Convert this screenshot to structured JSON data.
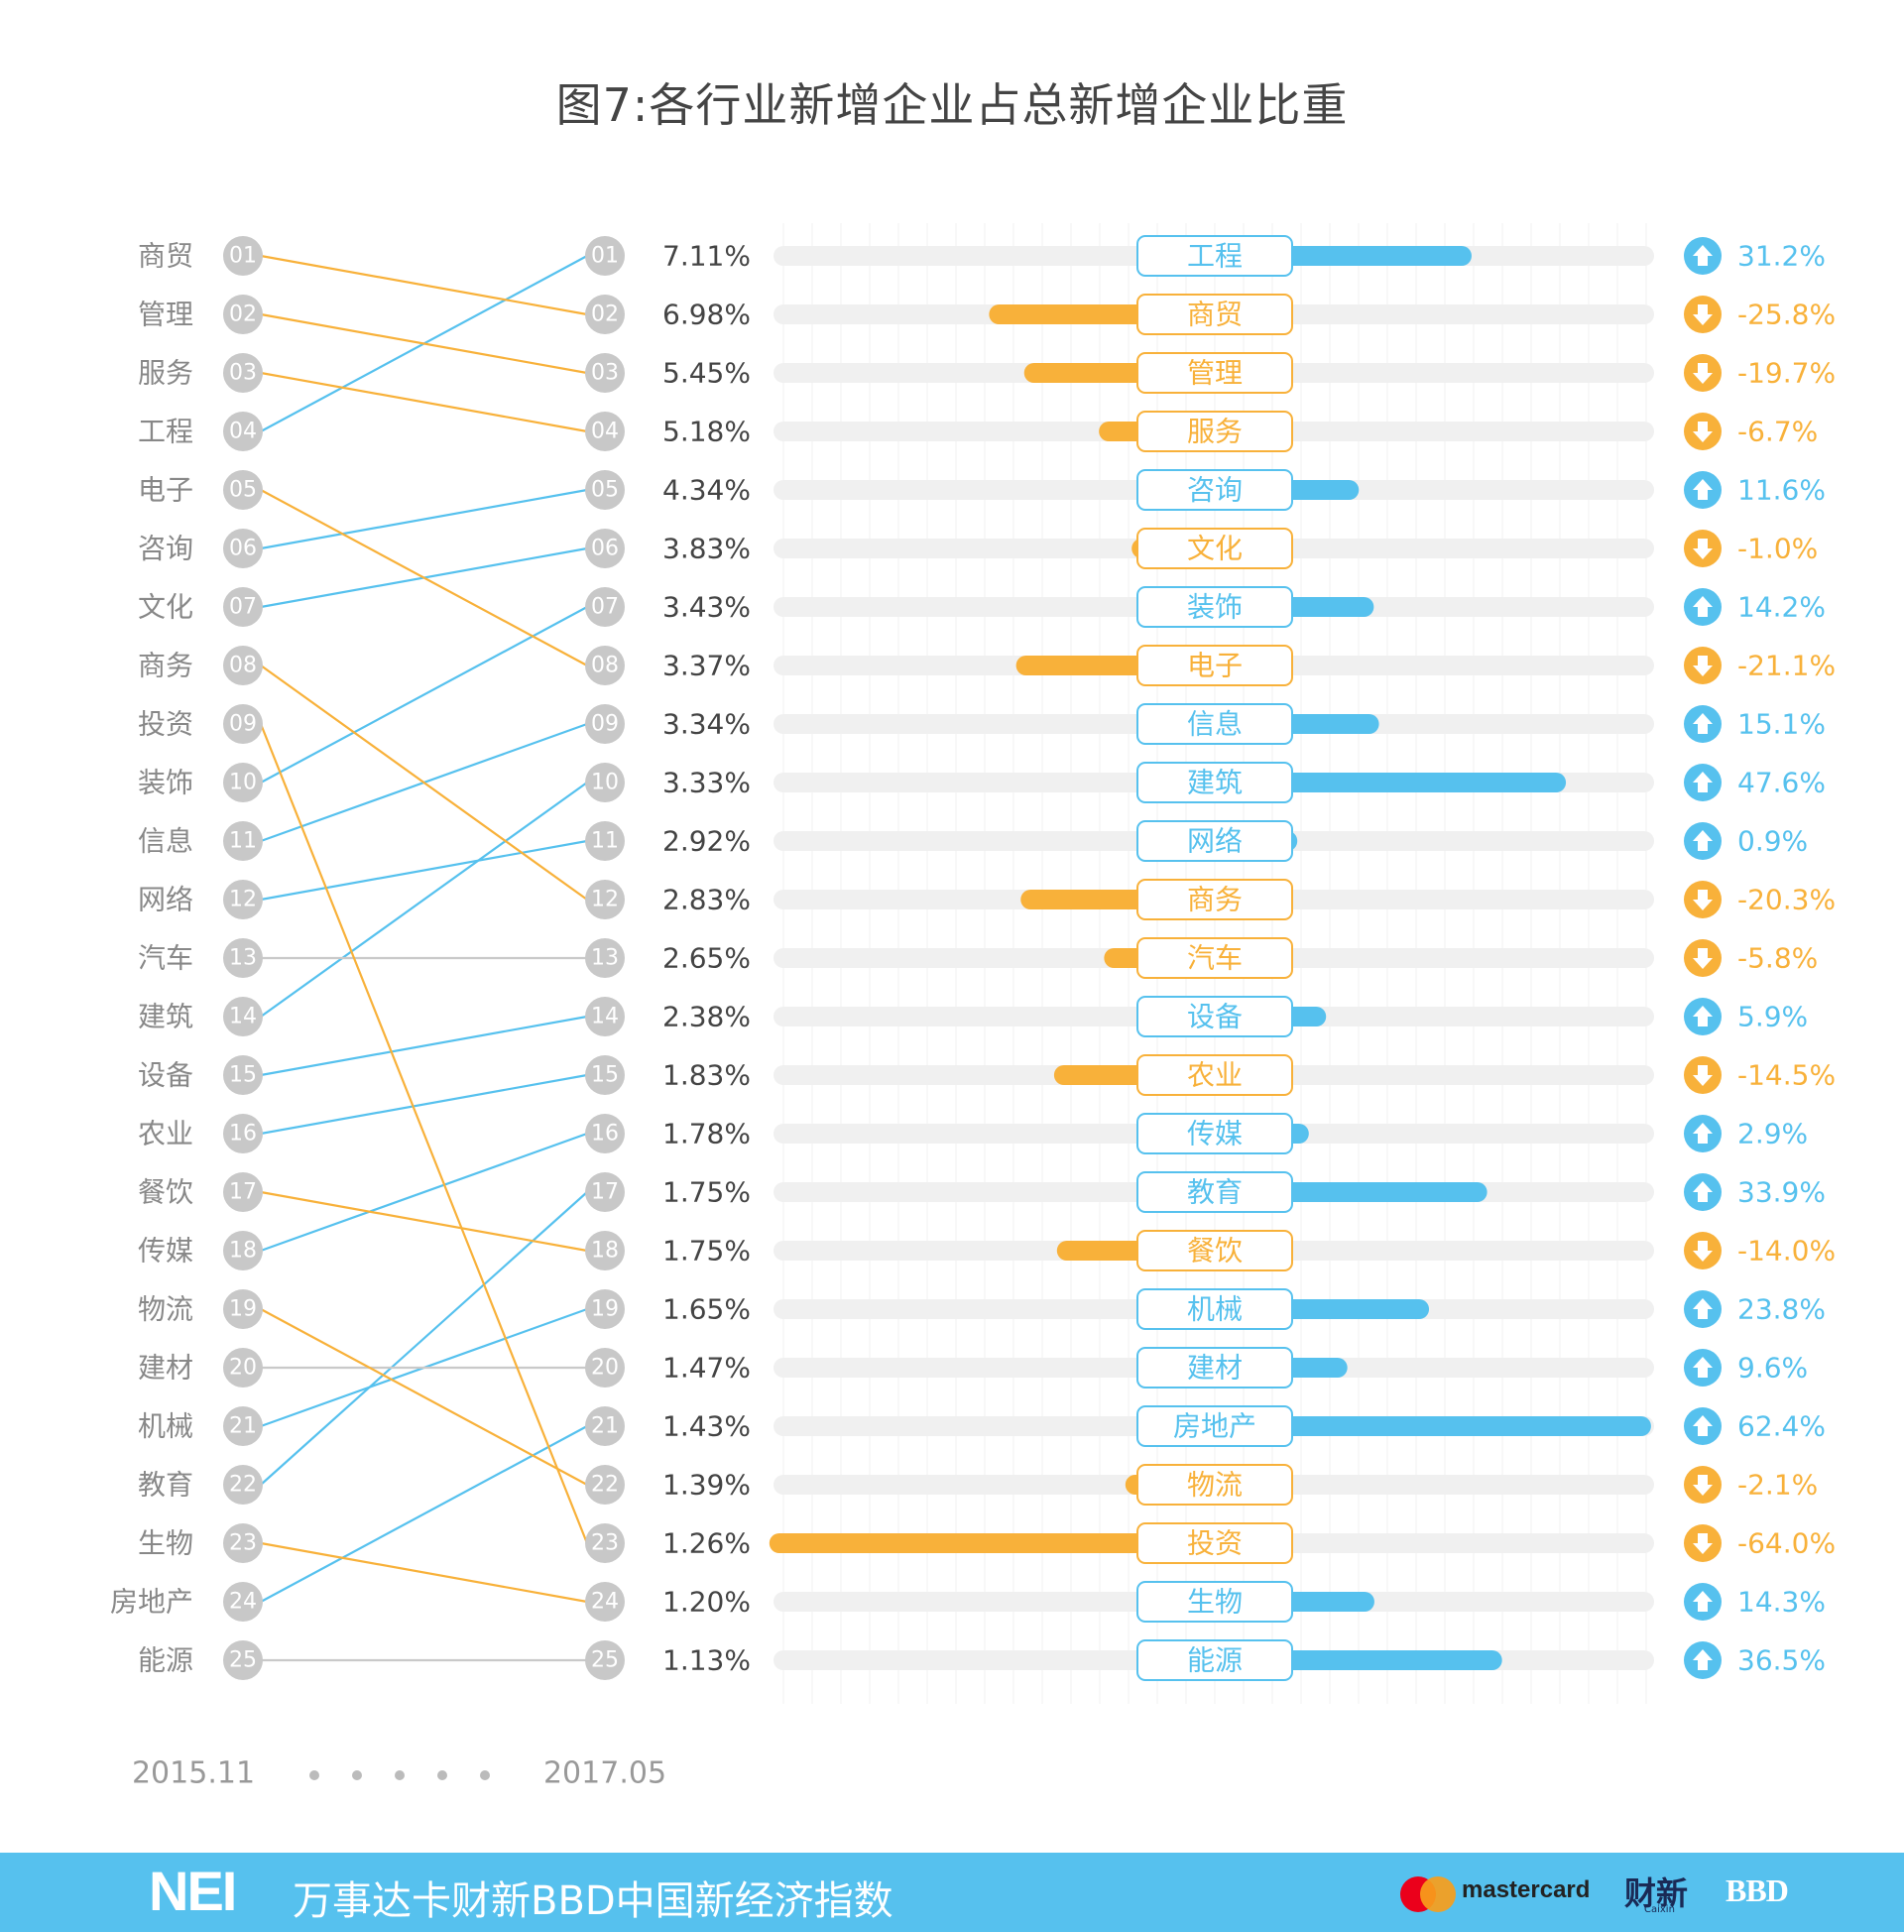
{
  "title": "图7:各行业新增企业占总新增企业比重",
  "colors": {
    "up": "#56c1ee",
    "down": "#f8b13a",
    "neutral": "#c9c9c9",
    "track": "#f0f0f0",
    "badge": "#c8c8c8"
  },
  "timeline": {
    "start": "2015.11",
    "end": "2017.05"
  },
  "chart_data": {
    "type": "bar",
    "left_ranking_2015": [
      "商贸",
      "管理",
      "服务",
      "工程",
      "电子",
      "咨询",
      "文化",
      "商务",
      "投资",
      "装饰",
      "信息",
      "网络",
      "汽车",
      "建筑",
      "设备",
      "农业",
      "餐饮",
      "传媒",
      "物流",
      "建材",
      "机械",
      "教育",
      "生物",
      "房地产",
      "能源"
    ],
    "rows": [
      {
        "rank": "01",
        "share": "7.11%",
        "name": "工程",
        "change": 31.2,
        "change_label": "31.2%",
        "from": "04"
      },
      {
        "rank": "02",
        "share": "6.98%",
        "name": "商贸",
        "change": -25.8,
        "change_label": "-25.8%",
        "from": "01"
      },
      {
        "rank": "03",
        "share": "5.45%",
        "name": "管理",
        "change": -19.7,
        "change_label": "-19.7%",
        "from": "02"
      },
      {
        "rank": "04",
        "share": "5.18%",
        "name": "服务",
        "change": -6.7,
        "change_label": "-6.7%",
        "from": "03"
      },
      {
        "rank": "05",
        "share": "4.34%",
        "name": "咨询",
        "change": 11.6,
        "change_label": "11.6%",
        "from": "06"
      },
      {
        "rank": "06",
        "share": "3.83%",
        "name": "文化",
        "change": -1.0,
        "change_label": "-1.0%",
        "from": "07"
      },
      {
        "rank": "07",
        "share": "3.43%",
        "name": "装饰",
        "change": 14.2,
        "change_label": "14.2%",
        "from": "10"
      },
      {
        "rank": "08",
        "share": "3.37%",
        "name": "电子",
        "change": -21.1,
        "change_label": "-21.1%",
        "from": "05"
      },
      {
        "rank": "09",
        "share": "3.34%",
        "name": "信息",
        "change": 15.1,
        "change_label": "15.1%",
        "from": "11"
      },
      {
        "rank": "10",
        "share": "3.33%",
        "name": "建筑",
        "change": 47.6,
        "change_label": "47.6%",
        "from": "14"
      },
      {
        "rank": "11",
        "share": "2.92%",
        "name": "网络",
        "change": 0.9,
        "change_label": "0.9%",
        "from": "12"
      },
      {
        "rank": "12",
        "share": "2.83%",
        "name": "商务",
        "change": -20.3,
        "change_label": "-20.3%",
        "from": "08"
      },
      {
        "rank": "13",
        "share": "2.65%",
        "name": "汽车",
        "change": -5.8,
        "change_label": "-5.8%",
        "from": "13"
      },
      {
        "rank": "14",
        "share": "2.38%",
        "name": "设备",
        "change": 5.9,
        "change_label": "5.9%",
        "from": "15"
      },
      {
        "rank": "15",
        "share": "1.83%",
        "name": "农业",
        "change": -14.5,
        "change_label": "-14.5%",
        "from": "16"
      },
      {
        "rank": "16",
        "share": "1.78%",
        "name": "传媒",
        "change": 2.9,
        "change_label": "2.9%",
        "from": "18"
      },
      {
        "rank": "17",
        "share": "1.75%",
        "name": "教育",
        "change": 33.9,
        "change_label": "33.9%",
        "from": "22"
      },
      {
        "rank": "18",
        "share": "1.75%",
        "name": "餐饮",
        "change": -14.0,
        "change_label": "-14.0%",
        "from": "17"
      },
      {
        "rank": "19",
        "share": "1.65%",
        "name": "机械",
        "change": 23.8,
        "change_label": "23.8%",
        "from": "21"
      },
      {
        "rank": "20",
        "share": "1.47%",
        "name": "建材",
        "change": 9.6,
        "change_label": "9.6%",
        "from": "20"
      },
      {
        "rank": "21",
        "share": "1.43%",
        "name": "房地产",
        "change": 62.4,
        "change_label": "62.4%",
        "from": "24"
      },
      {
        "rank": "22",
        "share": "1.39%",
        "name": "物流",
        "change": -2.1,
        "change_label": "-2.1%",
        "from": "19"
      },
      {
        "rank": "23",
        "share": "1.26%",
        "name": "投资",
        "change": -64.0,
        "change_label": "-64.0%",
        "from": "09"
      },
      {
        "rank": "24",
        "share": "1.20%",
        "name": "生物",
        "change": 14.3,
        "change_label": "14.3%",
        "from": "23"
      },
      {
        "rank": "25",
        "share": "1.13%",
        "name": "能源",
        "change": 36.5,
        "change_label": "36.5%",
        "from": "25"
      }
    ],
    "xlim": [
      -80,
      80
    ],
    "grid": true
  },
  "footer": {
    "logo": "NEI",
    "index_name": "万事达卡财新BBD中国新经济指数",
    "partner1": "mastercard",
    "partner2": "财新",
    "partner2_sub": "Caixin",
    "partner3": "BBD"
  }
}
